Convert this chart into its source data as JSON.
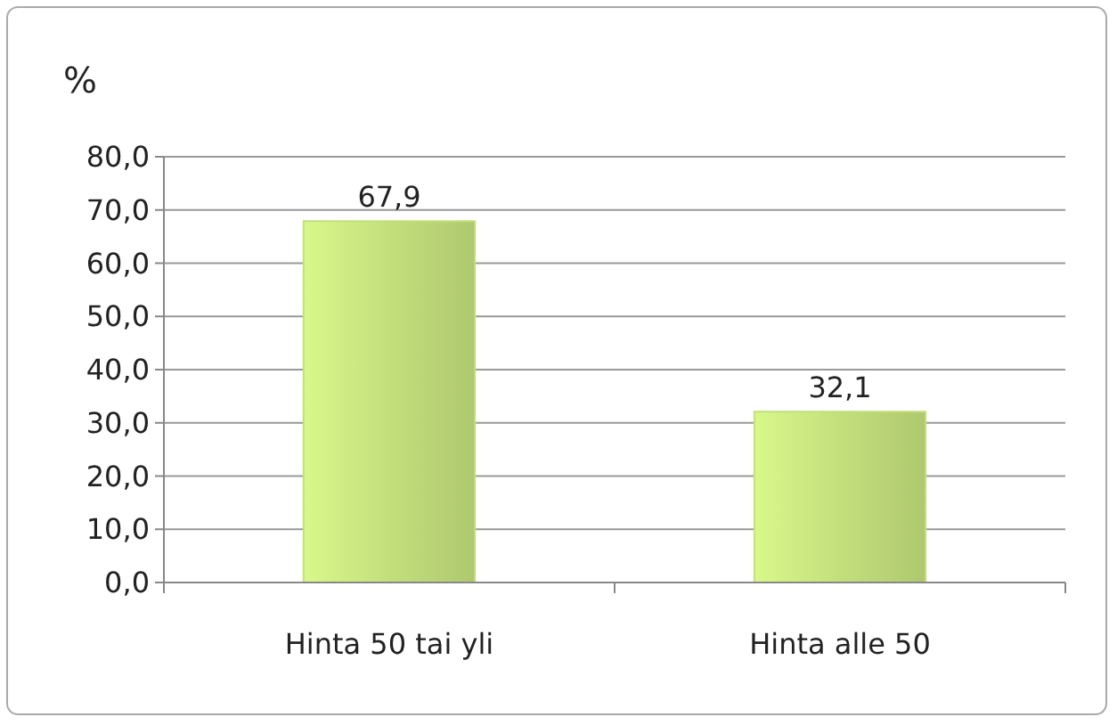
{
  "chart_data": {
    "type": "bar",
    "ylabel": "%",
    "categories": [
      "Hinta 50 tai yli",
      "Hinta alle 50"
    ],
    "values": [
      67.9,
      32.1
    ],
    "value_labels": [
      "67,9",
      "32,1"
    ],
    "color": "#c3df7c",
    "ylim": [
      0,
      80
    ],
    "yticks": [
      {
        "value": 0,
        "label": "0,0"
      },
      {
        "value": 10,
        "label": "10,0"
      },
      {
        "value": 20,
        "label": "20,0"
      },
      {
        "value": 30,
        "label": "30,0"
      },
      {
        "value": 40,
        "label": "40,0"
      },
      {
        "value": 50,
        "label": "50,0"
      },
      {
        "value": 60,
        "label": "60,0"
      },
      {
        "value": 70,
        "label": "70,0"
      },
      {
        "value": 80,
        "label": "80,0"
      }
    ],
    "grid": "y"
  }
}
